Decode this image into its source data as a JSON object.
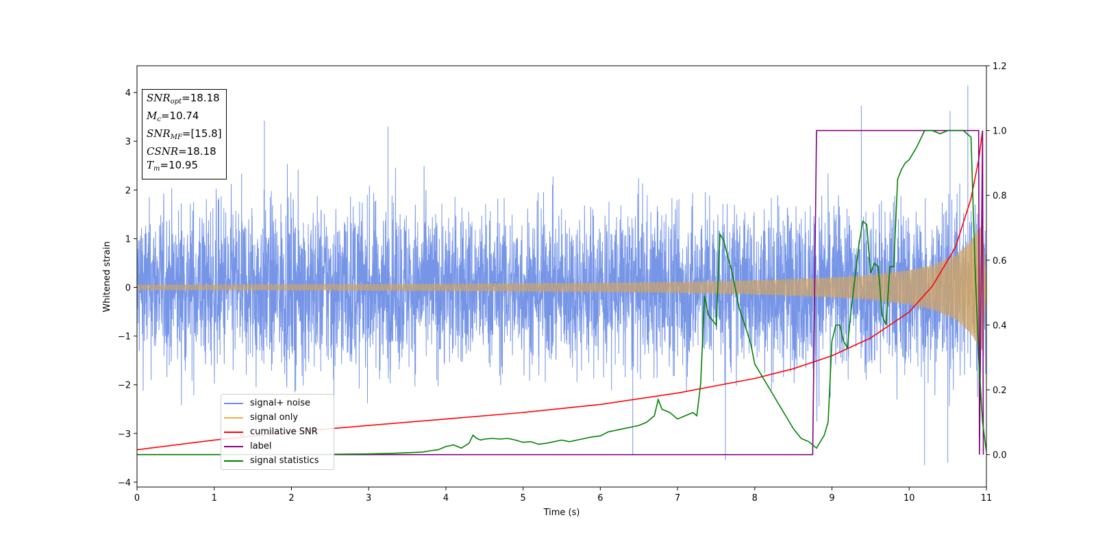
{
  "chart_data": {
    "type": "line",
    "title": "",
    "xlabel": "Time (s)",
    "ylabel_left": "Whitened strain",
    "ylabel_right": "",
    "xlim": [
      0,
      11
    ],
    "ylim_left": [
      -4.1,
      4.55
    ],
    "ylim_right": [
      -0.1,
      1.2
    ],
    "x_ticks": [
      0,
      1,
      2,
      3,
      4,
      5,
      6,
      7,
      8,
      9,
      10,
      11
    ],
    "y_left_ticks": [
      -4,
      -3,
      -2,
      -1,
      0,
      1,
      2,
      3,
      4
    ],
    "y_left_tick_labels": [
      "−4",
      "−3",
      "−2",
      "−1",
      "0",
      "1",
      "2",
      "3",
      "4"
    ],
    "y_right_ticks": [
      0.0,
      0.2,
      0.4,
      0.6,
      0.8,
      1.0,
      1.2
    ],
    "y_right_tick_labels": [
      "0.0",
      "0.2",
      "0.4",
      "0.6",
      "0.8",
      "1.0",
      "1.2"
    ],
    "grid": false,
    "legend_placement": "lower-left",
    "info_box": {
      "snr_opt": "=18.18",
      "mc": "=10.74",
      "snr_mf": "=[15.8]",
      "csnr": "=18.18",
      "tm": "=10.95"
    },
    "series": [
      {
        "name": "signal+ noise",
        "axis": "left",
        "color": "#6f8fe6",
        "description_values": "dense noise, typical range about -2.5..2.5, peaks near 4.15 at t=10.76 and -3.6 at t=10.2",
        "envelope_x": [
          0,
          1,
          2,
          3,
          4,
          5,
          6,
          7,
          8,
          9,
          10,
          11
        ],
        "envelope_upper": [
          2.6,
          2.8,
          2.8,
          2.8,
          2.6,
          2.6,
          2.6,
          2.8,
          2.6,
          2.8,
          2.9,
          3.0
        ],
        "envelope_lower": [
          -2.6,
          -2.7,
          -2.7,
          -2.7,
          -2.6,
          -2.6,
          -2.6,
          -2.7,
          -2.6,
          -2.7,
          -2.8,
          -2.6
        ],
        "spikes": [
          [
            1.65,
            3.42
          ],
          [
            3.25,
            3.3
          ],
          [
            9.38,
            3.73
          ],
          [
            10.76,
            4.15
          ],
          [
            10.53,
            3.62
          ],
          [
            2.55,
            -3.6
          ],
          [
            10.2,
            -3.65
          ],
          [
            10.5,
            -3.6
          ],
          [
            7.62,
            -3.55
          ],
          [
            6.42,
            -3.45
          ]
        ]
      },
      {
        "name": "signal only",
        "axis": "left",
        "color": "#f5b041",
        "description_values": "chirp centered at 0, amplitude envelope grows toward merger",
        "x": [
          0,
          2,
          4,
          6,
          7,
          8,
          9,
          9.5,
          10,
          10.3,
          10.6,
          10.8,
          10.9,
          10.95,
          11
        ],
        "amplitude": [
          0.05,
          0.06,
          0.07,
          0.09,
          0.11,
          0.14,
          0.2,
          0.25,
          0.35,
          0.45,
          0.65,
          0.95,
          1.2,
          1.3,
          0.0
        ]
      },
      {
        "name": "cumilative SNR",
        "axis": "right",
        "color": "#ff0000",
        "x": [
          0,
          1,
          2,
          3,
          4,
          5,
          6,
          7,
          8,
          8.5,
          9,
          9.5,
          10,
          10.3,
          10.6,
          10.8,
          10.9,
          10.95
        ],
        "values": [
          0.015,
          0.045,
          0.07,
          0.09,
          0.11,
          0.13,
          0.155,
          0.19,
          0.235,
          0.265,
          0.305,
          0.36,
          0.44,
          0.52,
          0.64,
          0.79,
          0.91,
          1.0
        ]
      },
      {
        "name": "label",
        "axis": "right",
        "color": "#800080",
        "x": [
          0,
          8.75,
          8.8,
          10.9,
          10.91,
          10.95,
          10.96
        ],
        "values": [
          0.0,
          0.0,
          1.0,
          1.0,
          0.0,
          1.0,
          0.0
        ]
      },
      {
        "name": "signal statistics",
        "axis": "right",
        "color": "#008000",
        "x": [
          0,
          1,
          2,
          3,
          3.3,
          3.5,
          3.7,
          3.8,
          3.9,
          4.0,
          4.1,
          4.2,
          4.3,
          4.35,
          4.4,
          4.45,
          4.5,
          4.6,
          4.7,
          4.8,
          4.9,
          5.0,
          5.1,
          5.2,
          5.3,
          5.4,
          5.5,
          5.6,
          5.7,
          5.8,
          5.9,
          6.0,
          6.1,
          6.2,
          6.3,
          6.4,
          6.5,
          6.6,
          6.7,
          6.75,
          6.8,
          6.9,
          7.0,
          7.1,
          7.2,
          7.25,
          7.3,
          7.35,
          7.4,
          7.5,
          7.55,
          7.6,
          7.65,
          7.7,
          7.8,
          7.9,
          7.95,
          8.0,
          8.1,
          8.2,
          8.3,
          8.4,
          8.5,
          8.6,
          8.7,
          8.8,
          8.9,
          8.95,
          9.0,
          9.05,
          9.1,
          9.15,
          9.2,
          9.25,
          9.3,
          9.35,
          9.4,
          9.45,
          9.5,
          9.55,
          9.6,
          9.65,
          9.7,
          9.75,
          9.8,
          9.85,
          9.9,
          9.95,
          10.0,
          10.1,
          10.2,
          10.3,
          10.4,
          10.5,
          10.6,
          10.7,
          10.8,
          10.85,
          10.9,
          10.95,
          11.0
        ],
        "values": [
          0.0,
          0.0,
          0.0,
          0.002,
          0.004,
          0.006,
          0.008,
          0.012,
          0.015,
          0.025,
          0.03,
          0.02,
          0.035,
          0.06,
          0.05,
          0.045,
          0.048,
          0.05,
          0.048,
          0.05,
          0.045,
          0.038,
          0.04,
          0.032,
          0.035,
          0.04,
          0.045,
          0.04,
          0.045,
          0.05,
          0.055,
          0.058,
          0.07,
          0.075,
          0.08,
          0.085,
          0.09,
          0.1,
          0.12,
          0.17,
          0.14,
          0.13,
          0.11,
          0.12,
          0.13,
          0.12,
          0.22,
          0.49,
          0.43,
          0.4,
          0.68,
          0.66,
          0.61,
          0.57,
          0.45,
          0.38,
          0.34,
          0.28,
          0.24,
          0.2,
          0.16,
          0.12,
          0.08,
          0.05,
          0.04,
          0.02,
          0.06,
          0.1,
          0.35,
          0.4,
          0.4,
          0.35,
          0.33,
          0.45,
          0.55,
          0.65,
          0.72,
          0.71,
          0.56,
          0.59,
          0.58,
          0.43,
          0.4,
          0.58,
          0.58,
          0.85,
          0.88,
          0.9,
          0.91,
          0.95,
          1.0,
          1.0,
          0.99,
          1.0,
          1.0,
          1.0,
          0.98,
          0.6,
          0.3,
          0.1,
          0.01
        ]
      }
    ]
  }
}
